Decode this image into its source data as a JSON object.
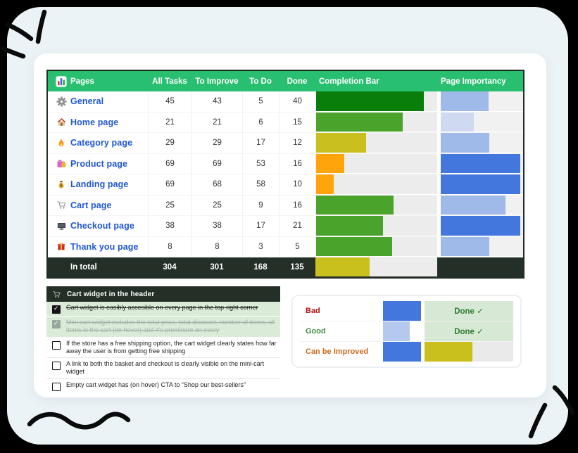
{
  "table": {
    "header": {
      "pages": "Pages",
      "all_tasks": "All Tasks",
      "to_improve": "To Improve",
      "to_do": "To Do",
      "done": "Done",
      "completion": "Completion Bar",
      "importancy": "Page Importancy"
    },
    "rows": [
      {
        "icon": "gear",
        "name": "General",
        "all_tasks": "45",
        "to_improve": "43",
        "to_do": "5",
        "done": "40",
        "completion_pct": 88.9,
        "completion_color": "#0a7e0a",
        "importancy_pct": 58,
        "importancy_color": "#9fb9e8"
      },
      {
        "icon": "house",
        "name": "Home page",
        "all_tasks": "21",
        "to_improve": "21",
        "to_do": "6",
        "done": "15",
        "completion_pct": 71.4,
        "completion_color": "#4aa32a",
        "importancy_pct": 40,
        "importancy_color": "#cfdaf0"
      },
      {
        "icon": "fire",
        "name": "Category page",
        "all_tasks": "29",
        "to_improve": "29",
        "to_do": "17",
        "done": "12",
        "completion_pct": 41.4,
        "completion_color": "#c9c020",
        "importancy_pct": 59,
        "importancy_color": "#9fb9e8"
      },
      {
        "icon": "shopping-bags",
        "name": "Product page",
        "all_tasks": "69",
        "to_improve": "69",
        "to_do": "53",
        "done": "16",
        "completion_pct": 23.2,
        "completion_color": "#ffa40a",
        "importancy_pct": 97,
        "importancy_color": "#4477de"
      },
      {
        "icon": "money-bag",
        "name": "Landing page",
        "all_tasks": "69",
        "to_improve": "68",
        "to_do": "58",
        "done": "10",
        "completion_pct": 14.5,
        "completion_color": "#ffa40a",
        "importancy_pct": 97,
        "importancy_color": "#4477de"
      },
      {
        "icon": "cart",
        "name": "Cart page",
        "all_tasks": "25",
        "to_improve": "25",
        "to_do": "9",
        "done": "16",
        "completion_pct": 64,
        "completion_color": "#4aa32a",
        "importancy_pct": 79,
        "importancy_color": "#9fb9e8"
      },
      {
        "icon": "monitor",
        "name": "Checkout page",
        "all_tasks": "38",
        "to_improve": "38",
        "to_do": "17",
        "done": "21",
        "completion_pct": 55.3,
        "completion_color": "#4aa32a",
        "importancy_pct": 97,
        "importancy_color": "#4477de"
      },
      {
        "icon": "gift",
        "name": "Thank you page",
        "all_tasks": "8",
        "to_improve": "8",
        "to_do": "3",
        "done": "5",
        "completion_pct": 62.5,
        "completion_color": "#4aa32a",
        "importancy_pct": 59,
        "importancy_color": "#9fb9e8"
      }
    ],
    "total": {
      "label": "In total",
      "all_tasks": "304",
      "to_improve": "301",
      "to_do": "168",
      "done": "135",
      "completion_pct": 44.4,
      "completion_color": "#c9c01d"
    }
  },
  "checklist": {
    "title": "Cart widget in the header",
    "items": [
      {
        "text": "Cart widget is easibly accesible on every page in the top-right corner",
        "checked": true,
        "strike": true
      },
      {
        "text": "Mini cart widget includes the total price, total discount, number of items, all items in the cart (on hover) and it's prominent on every",
        "checked": true,
        "strike": true
      },
      {
        "text": "If the store has a free shipping option, the cart widget clearly states how far away the user is from getting free shipping",
        "checked": false,
        "strike": false
      },
      {
        "text": "A link to both the basket and checkout is clearly visible on the mini-cart widget",
        "checked": false,
        "strike": false
      },
      {
        "text": "Empty cart widget has (on hover) CTA to “Shop our best-sellers”",
        "checked": false,
        "strike": false
      }
    ]
  },
  "legend": {
    "rows": [
      {
        "label": "Bad",
        "label_color": "#b11212",
        "blue_pct": 100,
        "blue_color": "#4477de",
        "status": "Done ✓"
      },
      {
        "label": "Good",
        "label_color": "#3e8e41",
        "blue_pct": 70,
        "blue_color": "#b5c9ee",
        "status": "Done ✓"
      },
      {
        "label": "Can be Improved",
        "label_color": "#c96a1c",
        "blue_pct": 100,
        "blue_color": "#4477de",
        "status": "",
        "bar_pct": 54,
        "bar_color": "#c9c01d"
      }
    ]
  },
  "colors": {
    "header_green": "#29bf70",
    "dark_row": "#243027",
    "link_blue": "#1f57d3"
  }
}
